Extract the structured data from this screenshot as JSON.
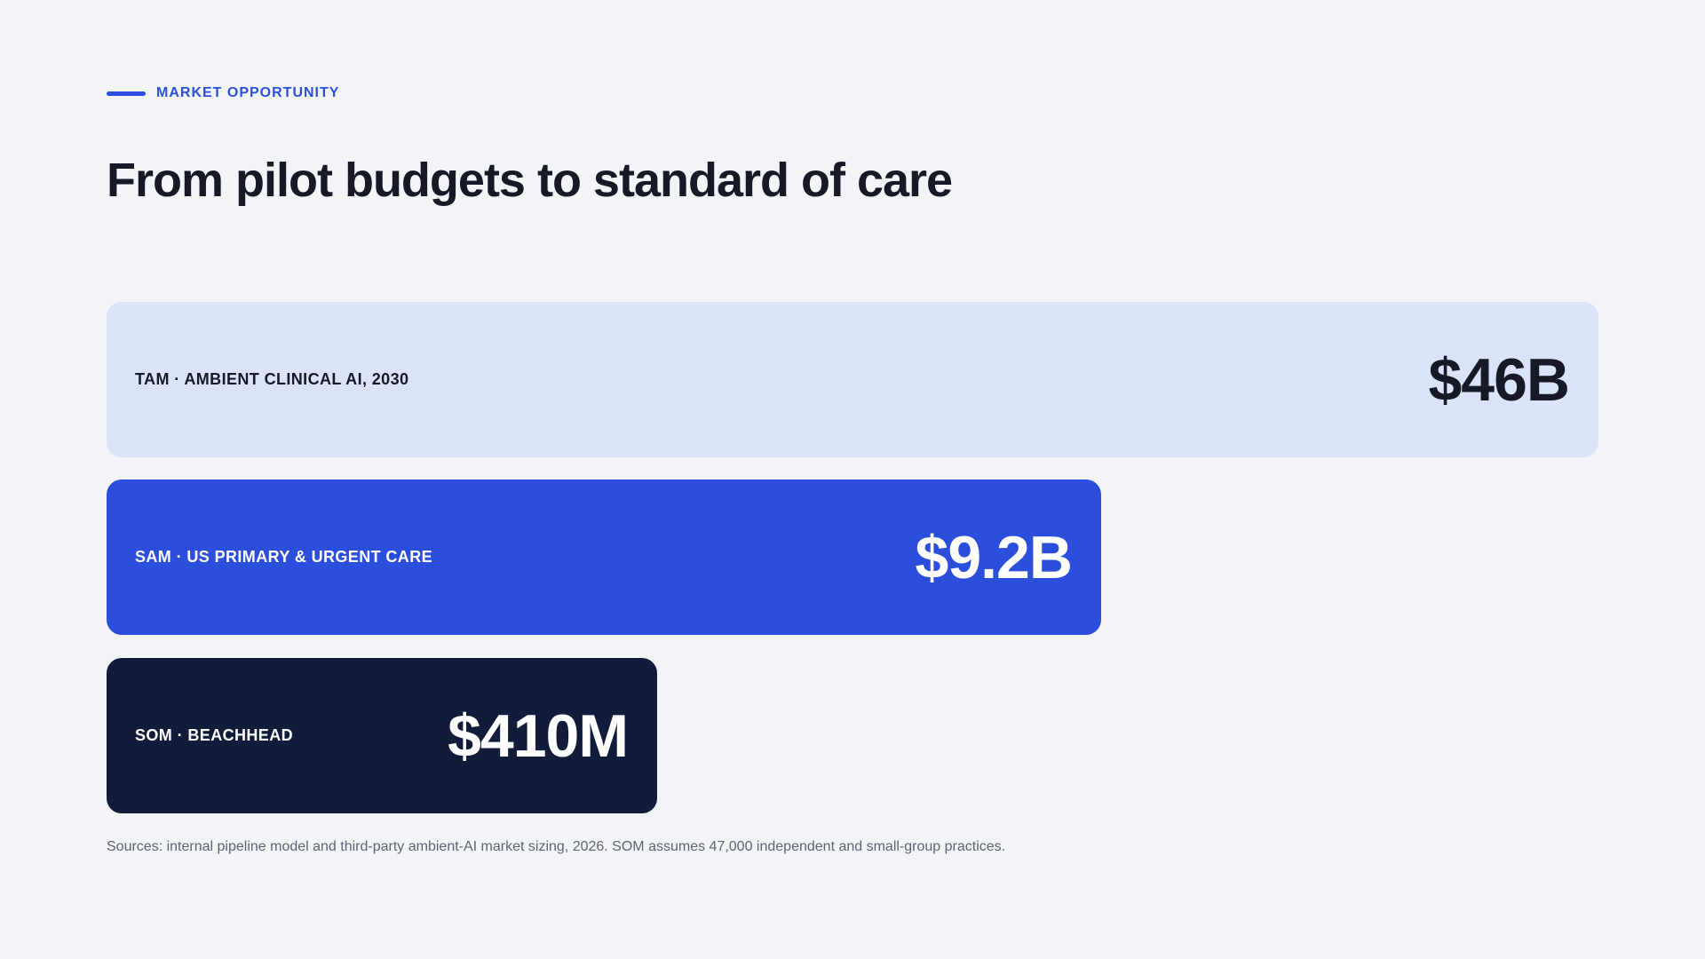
{
  "eyebrow": "MARKET OPPORTUNITY",
  "title": "From pilot budgets to standard of care",
  "tiers": [
    {
      "label": "TAM · AMBIENT CLINICAL AI, 2030",
      "value": "$46B"
    },
    {
      "label": "SAM · US PRIMARY & URGENT CARE",
      "value": "$9.2B"
    },
    {
      "label": "SOM · BEACHHEAD",
      "value": "$410M"
    }
  ],
  "sources": "Sources: internal pipeline model and third-party ambient-AI market sizing, 2026. SOM assumes 47,000 independent and small-group practices."
}
